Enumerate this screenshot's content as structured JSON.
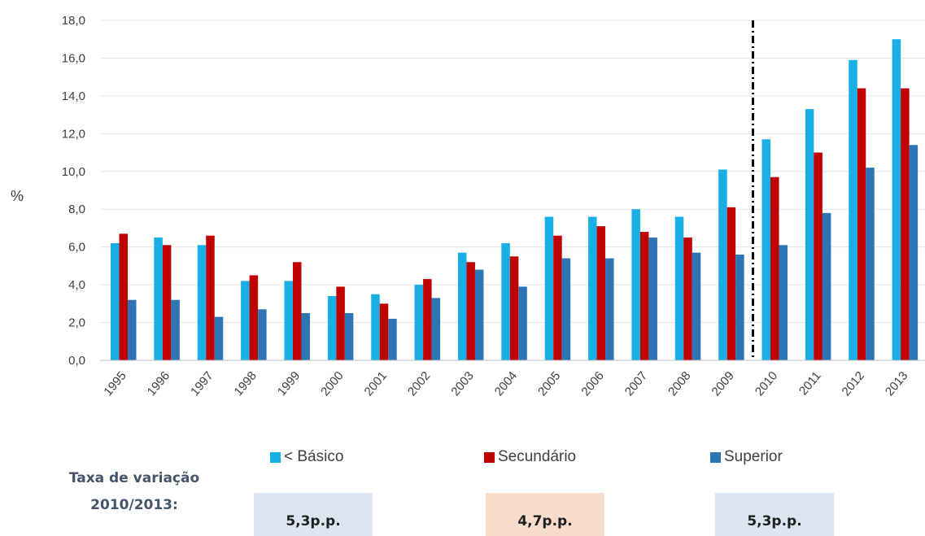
{
  "chart_data": {
    "type": "bar",
    "ylabel": "%",
    "ylim": [
      0,
      18
    ],
    "y_ticks": [
      "0,0",
      "2,0",
      "4,0",
      "6,0",
      "8,0",
      "10,0",
      "12,0",
      "14,0",
      "16,0",
      "18,0"
    ],
    "y_tick_values": [
      0,
      2,
      4,
      6,
      8,
      10,
      12,
      14,
      16,
      18
    ],
    "grid": true,
    "legend_position": "bottom",
    "categories": [
      "1995",
      "1996",
      "1997",
      "1998",
      "1999",
      "2000",
      "2001",
      "2002",
      "2003",
      "2004",
      "2005",
      "2006",
      "2007",
      "2008",
      "2009",
      "2010",
      "2011",
      "2012",
      "2013"
    ],
    "series": [
      {
        "name": "< Básico",
        "color": "#19AEE6",
        "values": [
          6.2,
          6.5,
          6.1,
          4.2,
          4.2,
          3.4,
          3.5,
          4.0,
          5.7,
          6.2,
          7.6,
          7.6,
          8.0,
          7.6,
          10.1,
          11.7,
          13.3,
          15.9,
          17.0
        ]
      },
      {
        "name": "Secundário",
        "color": "#C00000",
        "values": [
          6.7,
          6.1,
          6.6,
          4.5,
          5.2,
          3.9,
          3.0,
          4.3,
          5.2,
          5.5,
          6.6,
          7.1,
          6.8,
          6.5,
          8.1,
          9.7,
          11.0,
          14.4,
          14.4
        ]
      },
      {
        "name": "Superior",
        "color": "#2E75B6",
        "values": [
          3.2,
          3.2,
          2.3,
          2.7,
          2.5,
          2.5,
          2.2,
          3.3,
          4.8,
          3.9,
          5.4,
          5.4,
          6.5,
          5.7,
          5.6,
          6.1,
          7.8,
          10.2,
          11.4
        ]
      }
    ],
    "divider_between": [
      "2009",
      "2010"
    ]
  },
  "legend": [
    {
      "label": "< Básico",
      "color": "#19AEE6"
    },
    {
      "label": "Secundário",
      "color": "#C00000"
    },
    {
      "label": "Superior",
      "color": "#2E75B6"
    }
  ],
  "variation": {
    "title_line1": "Taxa de variação",
    "title_line2": "2010/2013:",
    "values": [
      {
        "text": "5,3p.p.",
        "bg": "#DCE6F2"
      },
      {
        "text": "4,7p.p.",
        "bg": "#F8DCCB"
      },
      {
        "text": "5,3p.p.",
        "bg": "#DCE6F2"
      }
    ]
  }
}
